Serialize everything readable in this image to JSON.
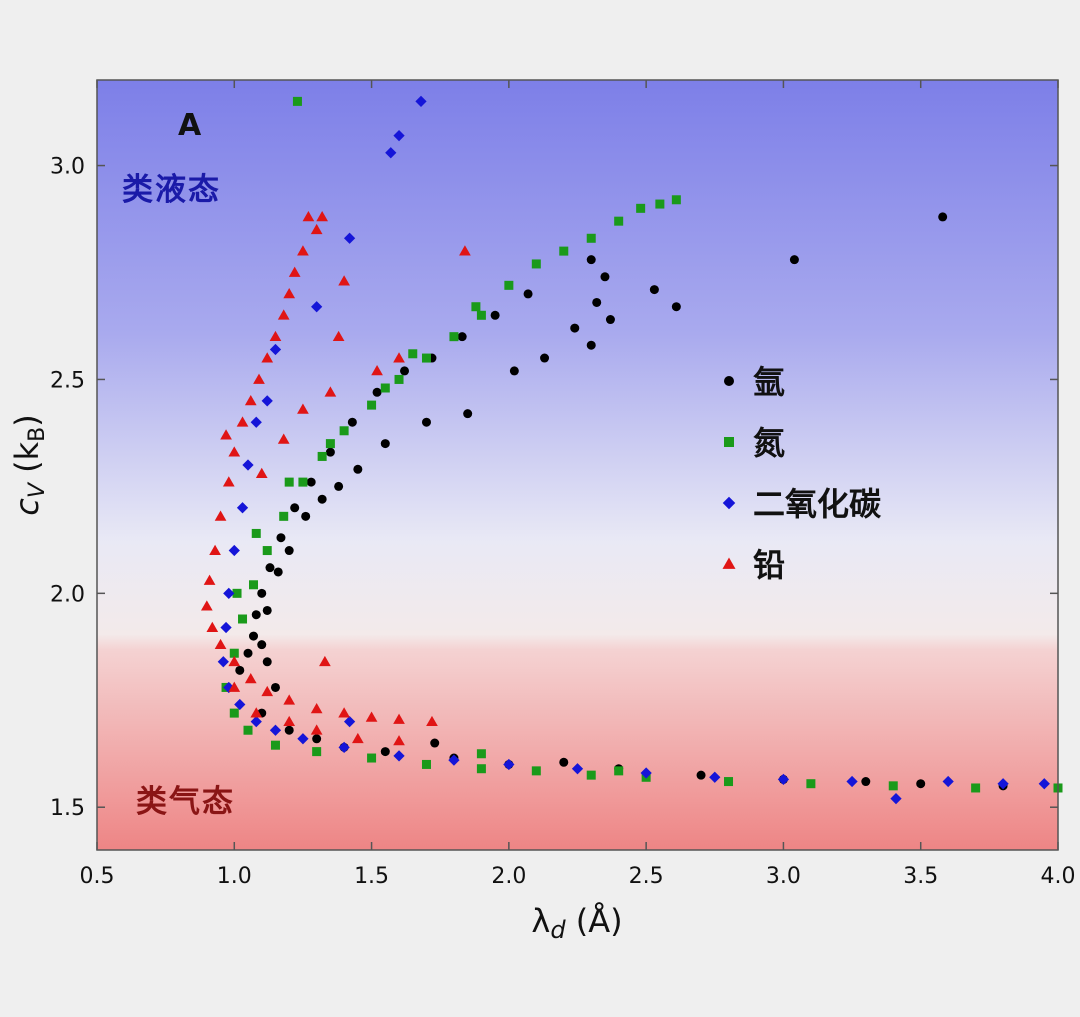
{
  "chart_data": {
    "type": "scatter",
    "panel_label": "A",
    "xlabel_main": "λ",
    "xlabel_sub": "d",
    "xlabel_unit": " (Å)",
    "ylabel_main": "c",
    "ylabel_sub": "V",
    "ylabel_mid": " (k",
    "ylabel_sub2": "B",
    "ylabel_end": ")",
    "xlim": [
      0.5,
      4.0
    ],
    "ylim": [
      1.4,
      3.2
    ],
    "xticks": [
      "0.5",
      "1.0",
      "1.5",
      "2.0",
      "2.5",
      "3.0",
      "3.5",
      "4.0"
    ],
    "yticks": [
      "1.5",
      "2.0",
      "2.5",
      "3.0"
    ],
    "regions": [
      {
        "label": "类液态",
        "color": "#1a1aa8"
      },
      {
        "label": "类气态",
        "color": "#8a1515"
      }
    ],
    "legend_position": "center-right",
    "series": [
      {
        "name": "氩",
        "marker": "circle",
        "color": "#000000",
        "points": [
          [
            1.02,
            1.82
          ],
          [
            1.05,
            1.86
          ],
          [
            1.07,
            1.9
          ],
          [
            1.08,
            1.95
          ],
          [
            1.1,
            2.0
          ],
          [
            1.13,
            2.06
          ],
          [
            1.17,
            2.13
          ],
          [
            1.22,
            2.2
          ],
          [
            1.28,
            2.26
          ],
          [
            1.35,
            2.33
          ],
          [
            1.43,
            2.4
          ],
          [
            1.52,
            2.47
          ],
          [
            1.62,
            2.52
          ],
          [
            1.72,
            2.55
          ],
          [
            1.83,
            2.6
          ],
          [
            1.95,
            2.65
          ],
          [
            2.07,
            2.7
          ],
          [
            2.3,
            2.78
          ],
          [
            2.35,
            2.74
          ],
          [
            2.53,
            2.71
          ],
          [
            2.61,
            2.67
          ],
          [
            3.04,
            2.78
          ],
          [
            3.58,
            2.88
          ],
          [
            2.3,
            2.58
          ],
          [
            2.32,
            2.68
          ],
          [
            2.37,
            2.64
          ],
          [
            2.24,
            2.62
          ],
          [
            2.13,
            2.55
          ],
          [
            2.02,
            2.52
          ],
          [
            1.85,
            2.42
          ],
          [
            1.7,
            2.4
          ],
          [
            1.55,
            2.35
          ],
          [
            1.45,
            2.29
          ],
          [
            1.38,
            2.25
          ],
          [
            1.32,
            2.22
          ],
          [
            1.26,
            2.18
          ],
          [
            1.2,
            2.1
          ],
          [
            1.16,
            2.05
          ],
          [
            1.12,
            1.96
          ],
          [
            1.1,
            1.88
          ],
          [
            1.12,
            1.84
          ],
          [
            1.15,
            1.78
          ],
          [
            1.1,
            1.72
          ],
          [
            1.2,
            1.68
          ],
          [
            1.3,
            1.66
          ],
          [
            1.4,
            1.64
          ],
          [
            1.55,
            1.63
          ],
          [
            1.73,
            1.65
          ],
          [
            1.8,
            1.615
          ],
          [
            2.0,
            1.6
          ],
          [
            2.2,
            1.605
          ],
          [
            2.4,
            1.59
          ],
          [
            2.7,
            1.575
          ],
          [
            3.0,
            1.565
          ],
          [
            3.3,
            1.56
          ],
          [
            3.5,
            1.555
          ],
          [
            3.8,
            1.55
          ],
          [
            4.0,
            1.545
          ]
        ]
      },
      {
        "name": "氮",
        "marker": "square",
        "color": "#1a9a1a",
        "points": [
          [
            1.23,
            3.15
          ],
          [
            0.97,
            1.78
          ],
          [
            1.0,
            1.86
          ],
          [
            1.03,
            1.94
          ],
          [
            1.07,
            2.02
          ],
          [
            1.12,
            2.1
          ],
          [
            1.18,
            2.18
          ],
          [
            1.25,
            2.26
          ],
          [
            1.32,
            2.32
          ],
          [
            1.4,
            2.38
          ],
          [
            1.5,
            2.44
          ],
          [
            1.6,
            2.5
          ],
          [
            1.7,
            2.55
          ],
          [
            1.8,
            2.6
          ],
          [
            1.9,
            2.65
          ],
          [
            2.0,
            2.72
          ],
          [
            2.1,
            2.77
          ],
          [
            2.2,
            2.8
          ],
          [
            2.3,
            2.83
          ],
          [
            2.4,
            2.87
          ],
          [
            2.48,
            2.9
          ],
          [
            2.55,
            2.91
          ],
          [
            2.61,
            2.92
          ],
          [
            1.88,
            2.67
          ],
          [
            1.65,
            2.56
          ],
          [
            1.55,
            2.48
          ],
          [
            1.35,
            2.35
          ],
          [
            1.2,
            2.26
          ],
          [
            1.08,
            2.14
          ],
          [
            1.01,
            2.0
          ],
          [
            1.0,
            1.72
          ],
          [
            1.05,
            1.68
          ],
          [
            1.15,
            1.645
          ],
          [
            1.3,
            1.63
          ],
          [
            1.5,
            1.615
          ],
          [
            1.7,
            1.6
          ],
          [
            1.9,
            1.59
          ],
          [
            2.1,
            1.585
          ],
          [
            2.3,
            1.575
          ],
          [
            2.5,
            1.57
          ],
          [
            2.8,
            1.56
          ],
          [
            3.1,
            1.555
          ],
          [
            3.4,
            1.55
          ],
          [
            3.7,
            1.545
          ],
          [
            4.0,
            1.545
          ],
          [
            1.9,
            1.625
          ],
          [
            2.4,
            1.585
          ]
        ]
      },
      {
        "name": "二氧化碳",
        "marker": "diamond",
        "color": "#1515d8",
        "points": [
          [
            1.68,
            3.15
          ],
          [
            1.6,
            3.07
          ],
          [
            1.57,
            3.03
          ],
          [
            1.42,
            2.83
          ],
          [
            1.3,
            2.67
          ],
          [
            1.15,
            2.57
          ],
          [
            1.12,
            2.45
          ],
          [
            1.08,
            2.4
          ],
          [
            1.05,
            2.3
          ],
          [
            1.03,
            2.2
          ],
          [
            1.0,
            2.1
          ],
          [
            0.98,
            2.0
          ],
          [
            0.97,
            1.92
          ],
          [
            0.96,
            1.84
          ],
          [
            0.98,
            1.78
          ],
          [
            1.02,
            1.74
          ],
          [
            1.08,
            1.7
          ],
          [
            1.15,
            1.68
          ],
          [
            1.25,
            1.66
          ],
          [
            1.4,
            1.64
          ],
          [
            1.6,
            1.62
          ],
          [
            1.8,
            1.61
          ],
          [
            2.0,
            1.6
          ],
          [
            2.25,
            1.59
          ],
          [
            2.5,
            1.58
          ],
          [
            2.75,
            1.57
          ],
          [
            3.0,
            1.565
          ],
          [
            3.25,
            1.56
          ],
          [
            3.41,
            1.52
          ],
          [
            3.6,
            1.56
          ],
          [
            3.8,
            1.555
          ],
          [
            3.95,
            1.555
          ],
          [
            1.42,
            1.7
          ]
        ]
      },
      {
        "name": "铅",
        "marker": "triangle",
        "color": "#e01515",
        "points": [
          [
            1.27,
            2.88
          ],
          [
            1.32,
            2.88
          ],
          [
            1.3,
            2.85
          ],
          [
            1.25,
            2.8
          ],
          [
            1.22,
            2.75
          ],
          [
            1.2,
            2.7
          ],
          [
            1.18,
            2.65
          ],
          [
            1.15,
            2.6
          ],
          [
            1.12,
            2.55
          ],
          [
            1.09,
            2.5
          ],
          [
            1.06,
            2.45
          ],
          [
            1.03,
            2.4
          ],
          [
            1.0,
            2.33
          ],
          [
            0.98,
            2.26
          ],
          [
            0.95,
            2.18
          ],
          [
            0.93,
            2.1
          ],
          [
            0.91,
            2.03
          ],
          [
            0.9,
            1.97
          ],
          [
            0.92,
            1.92
          ],
          [
            0.95,
            1.88
          ],
          [
            1.0,
            1.84
          ],
          [
            1.06,
            1.8
          ],
          [
            1.12,
            1.77
          ],
          [
            1.2,
            1.75
          ],
          [
            1.3,
            1.73
          ],
          [
            1.4,
            1.72
          ],
          [
            1.5,
            1.71
          ],
          [
            1.6,
            1.705
          ],
          [
            1.72,
            1.7
          ],
          [
            1.33,
            1.84
          ],
          [
            1.84,
            2.8
          ],
          [
            1.4,
            2.73
          ],
          [
            1.38,
            2.6
          ],
          [
            1.6,
            2.55
          ],
          [
            1.52,
            2.52
          ],
          [
            1.35,
            2.47
          ],
          [
            1.25,
            2.43
          ],
          [
            1.18,
            2.36
          ],
          [
            0.97,
            2.37
          ],
          [
            1.1,
            2.28
          ],
          [
            1.0,
            1.78
          ],
          [
            1.08,
            1.72
          ],
          [
            1.2,
            1.7
          ],
          [
            1.3,
            1.68
          ],
          [
            1.45,
            1.66
          ],
          [
            1.6,
            1.655
          ]
        ]
      }
    ]
  }
}
